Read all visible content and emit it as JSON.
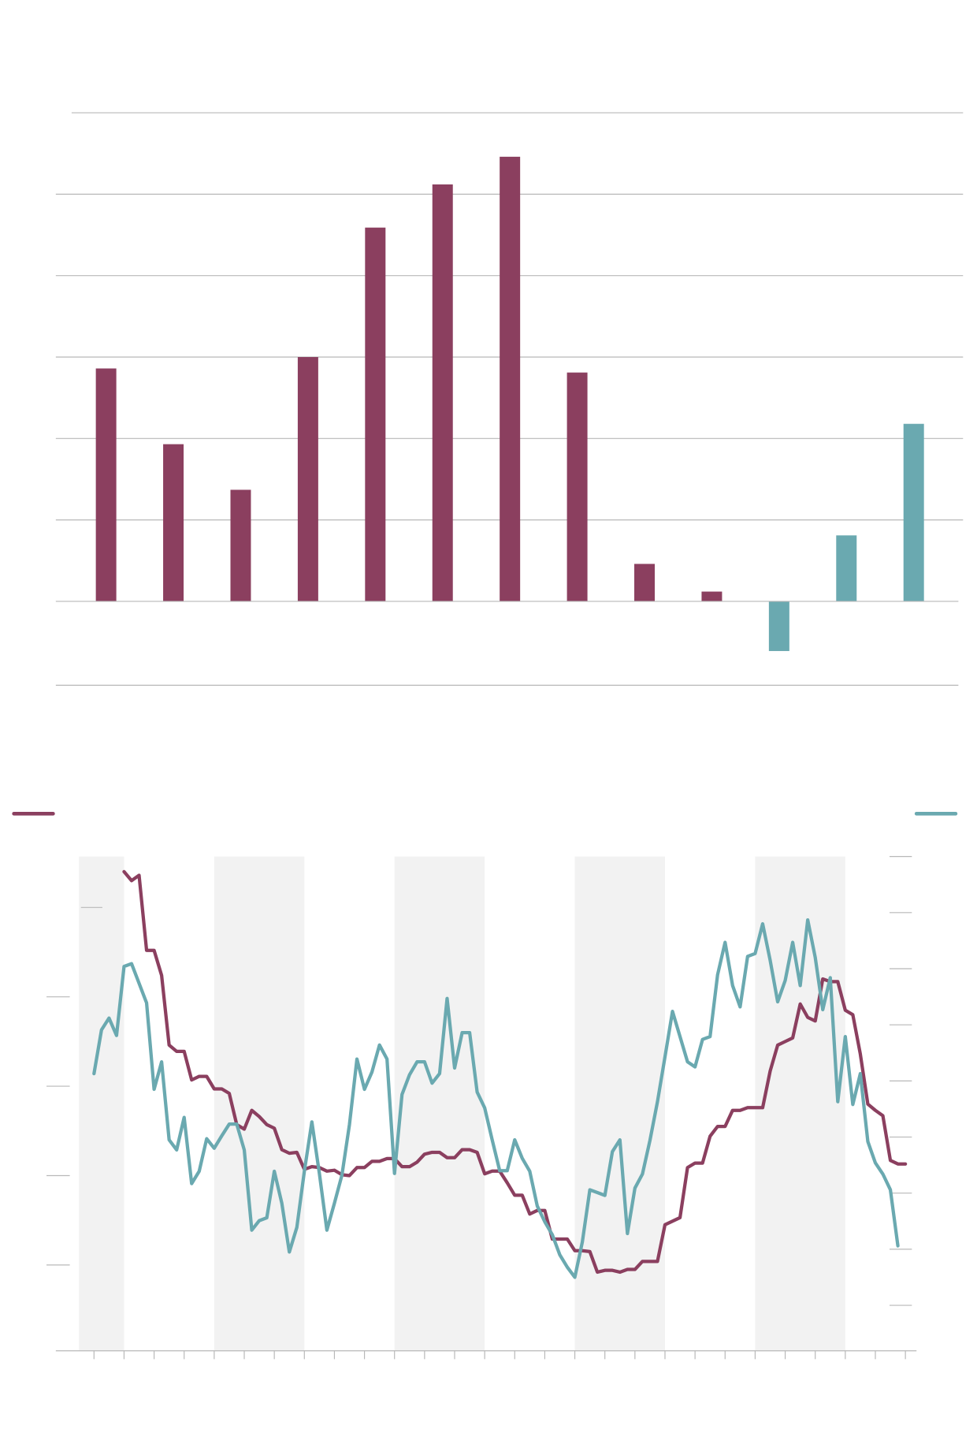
{
  "chart_data": [
    {
      "type": "bar",
      "values": [
        2.86,
        1.93,
        1.37,
        3.0,
        4.59,
        5.12,
        5.46,
        2.81,
        0.46,
        0.12,
        -0.61,
        0.81,
        2.18
      ],
      "colors": [
        "#8b3f5f",
        "#8b3f5f",
        "#8b3f5f",
        "#8b3f5f",
        "#8b3f5f",
        "#8b3f5f",
        "#8b3f5f",
        "#8b3f5f",
        "#8b3f5f",
        "#8b3f5f",
        "#6aa9b0",
        "#6aa9b0",
        "#6aa9b0"
      ],
      "ylim": [
        -1.03,
        6.0
      ],
      "yticks": [
        1,
        2,
        3,
        4,
        5,
        6
      ],
      "grid": true
    },
    {
      "type": "line",
      "xlim": [
        -1.27,
        27.37
      ],
      "xticks": [
        0,
        1,
        2,
        3,
        4,
        5,
        6,
        7,
        8,
        9,
        10,
        11,
        12,
        13,
        14,
        15,
        16,
        17,
        18,
        19,
        20,
        21,
        22,
        23,
        24,
        25,
        26,
        27
      ],
      "ylim": [
        0.04,
        5.57
      ],
      "yticks": [
        1,
        2,
        3,
        4,
        5
      ],
      "y2lim": [
        -0.81,
        8.0
      ],
      "y2ticks": [
        0,
        1,
        2,
        3,
        4,
        5,
        6,
        7,
        8
      ],
      "bands": [
        [
          -0.5,
          1
        ],
        [
          4,
          7
        ],
        [
          10,
          13
        ],
        [
          16,
          19
        ],
        [
          22,
          25
        ]
      ],
      "series": [
        {
          "color": "#8b3f5f",
          "x": [
            1,
            1.25,
            1.5,
            1.75,
            2,
            2.25,
            2.5,
            2.75,
            3,
            3.25,
            3.5,
            3.75,
            4,
            4.25,
            4.5,
            4.75,
            5,
            5.25,
            5.5,
            5.75,
            6,
            6.25,
            6.5,
            6.75,
            7,
            7.25,
            7.5,
            7.75,
            8,
            8.25,
            8.5,
            8.75,
            9,
            9.25,
            9.5,
            9.75,
            10,
            10.25,
            10.5,
            10.75,
            11,
            11.25,
            11.5,
            11.75,
            12,
            12.25,
            12.5,
            12.75,
            13,
            13.25,
            13.5,
            13.75,
            14,
            14.25,
            14.5,
            14.75,
            15,
            15.25,
            15.5,
            15.75,
            16,
            16.25,
            16.5,
            16.75,
            17,
            17.25,
            17.5,
            17.75,
            18,
            18.25,
            18.5,
            18.75,
            19,
            19.25,
            19.5,
            19.75,
            20,
            20.25,
            20.5,
            20.75,
            21,
            21.25,
            21.5,
            21.75,
            22,
            22.25,
            22.5,
            22.75,
            23,
            23.25,
            23.5,
            23.75,
            24,
            24.25,
            24.5,
            24.75,
            25,
            25.25,
            25.5,
            25.75,
            26,
            26.25,
            26.5,
            26.75,
            27
          ],
          "values": [
            5.4,
            5.3,
            5.36,
            4.52,
            4.52,
            4.24,
            3.46,
            3.39,
            3.39,
            3.07,
            3.11,
            3.11,
            2.97,
            2.97,
            2.92,
            2.57,
            2.52,
            2.73,
            2.66,
            2.57,
            2.53,
            2.29,
            2.25,
            2.26,
            2.07,
            2.1,
            2.09,
            2.05,
            2.06,
            2.01,
            2.0,
            2.09,
            2.09,
            2.16,
            2.16,
            2.19,
            2.19,
            2.1,
            2.1,
            2.15,
            2.24,
            2.26,
            2.26,
            2.2,
            2.2,
            2.29,
            2.29,
            2.26,
            2.02,
            2.05,
            2.05,
            1.92,
            1.78,
            1.78,
            1.57,
            1.61,
            1.61,
            1.29,
            1.29,
            1.29,
            1.16,
            1.16,
            1.15,
            0.92,
            0.94,
            0.94,
            0.92,
            0.95,
            0.95,
            1.04,
            1.04,
            1.04,
            1.45,
            1.49,
            1.53,
            2.09,
            2.14,
            2.14,
            2.44,
            2.55,
            2.55,
            2.73,
            2.73,
            2.76,
            2.76,
            2.76,
            3.17,
            3.46,
            3.5,
            3.54,
            3.92,
            3.77,
            3.73,
            4.2,
            4.17,
            4.17,
            3.85,
            3.8,
            3.36,
            2.8,
            2.73,
            2.67,
            2.17,
            2.13,
            2.13
          ]
        },
        {
          "color": "#6aa9b0",
          "axis": "y2",
          "x": [
            0,
            0.25,
            0.5,
            0.75,
            1,
            1.25,
            1.5,
            1.75,
            2,
            2.25,
            2.5,
            2.75,
            3,
            3.25,
            3.5,
            3.75,
            4,
            4.25,
            4.5,
            4.75,
            5,
            5.25,
            5.5,
            5.75,
            6,
            6.25,
            6.5,
            6.75,
            7,
            7.25,
            7.5,
            7.75,
            8,
            8.25,
            8.5,
            8.75,
            9,
            9.25,
            9.5,
            9.75,
            10,
            10.25,
            10.5,
            10.75,
            11,
            11.25,
            11.5,
            11.75,
            12,
            12.25,
            12.5,
            12.75,
            13,
            13.25,
            13.5,
            13.75,
            14,
            14.25,
            14.5,
            14.75,
            15,
            15.25,
            15.5,
            15.75,
            16,
            16.25,
            16.5,
            16.75,
            17,
            17.25,
            17.5,
            17.75,
            18,
            18.25,
            18.5,
            18.75,
            19,
            19.25,
            19.5,
            19.75,
            20,
            20.25,
            20.5,
            20.75,
            21,
            21.25,
            21.5,
            21.75,
            22,
            22.25,
            22.5,
            22.75,
            23,
            23.25,
            23.5,
            23.75,
            24,
            24.25,
            24.5,
            24.75,
            25,
            25.25,
            25.5,
            25.75,
            26,
            26.25,
            26.5,
            26.75
          ],
          "values": [
            4.13,
            4.91,
            5.12,
            4.81,
            6.04,
            6.09,
            5.74,
            5.39,
            3.85,
            4.34,
            2.95,
            2.77,
            3.35,
            2.17,
            2.39,
            2.97,
            2.8,
            3.02,
            3.23,
            3.23,
            2.77,
            1.34,
            1.51,
            1.56,
            2.39,
            1.82,
            0.95,
            1.39,
            2.39,
            3.27,
            2.35,
            1.34,
            1.82,
            2.32,
            3.22,
            4.39,
            3.85,
            4.16,
            4.64,
            4.39,
            2.35,
            3.76,
            4.11,
            4.34,
            4.34,
            3.96,
            4.13,
            5.47,
            4.23,
            4.86,
            4.86,
            3.8,
            3.52,
            2.95,
            2.4,
            2.4,
            2.95,
            2.62,
            2.39,
            1.77,
            1.49,
            1.26,
            0.9,
            0.68,
            0.5,
            1.13,
            2.06,
            2.01,
            1.96,
            2.74,
            2.95,
            1.28,
            2.09,
            2.34,
            2.94,
            3.63,
            4.43,
            5.24,
            4.79,
            4.34,
            4.25,
            4.74,
            4.79,
            5.89,
            6.47,
            5.7,
            5.32,
            6.22,
            6.27,
            6.8,
            6.15,
            5.41,
            5.79,
            6.47,
            5.7,
            6.87,
            6.2,
            5.27,
            5.84,
            3.63,
            4.79,
            3.58,
            4.13,
            2.92,
            2.54,
            2.34,
            2.06,
            1.06
          ]
        }
      ]
    }
  ]
}
